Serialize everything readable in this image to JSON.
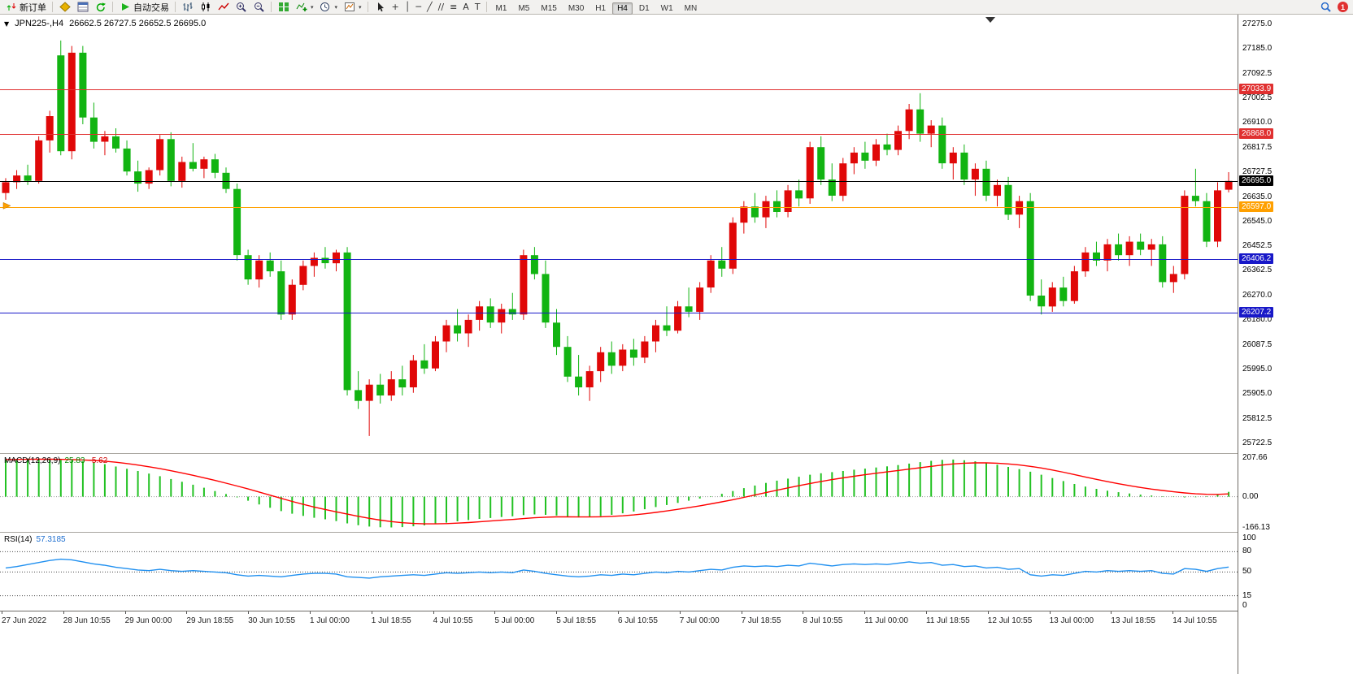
{
  "toolbar": {
    "new_order_label": "新订单",
    "autotrading_label": "自动交易",
    "timeframes": [
      "M1",
      "M5",
      "M15",
      "M30",
      "H1",
      "H4",
      "D1",
      "W1",
      "MN"
    ],
    "active_timeframe": "H4",
    "notification_count": "1"
  },
  "icons": {
    "chart_context_arrow": "▼",
    "dropdown_arrow": "▾",
    "crosshair": "+",
    "vertical_line": "│",
    "horizontal_line": "─",
    "trendline": "╱",
    "channel": "∕∕",
    "fibonacci": "≡",
    "text_tool": "A",
    "label_tool": "T"
  },
  "chart": {
    "title": "JPN225-,H4",
    "ohlc_text": "26662.5 26727.5 26652.5 26695.0",
    "price_axis": [
      "27275.0",
      "27185.0",
      "27092.5",
      "27002.5",
      "26910.0",
      "26817.5",
      "26727.5",
      "26635.0",
      "26545.0",
      "26452.5",
      "26362.5",
      "26270.0",
      "26180.0",
      "26087.5",
      "25995.0",
      "25905.0",
      "25812.5",
      "25722.5"
    ],
    "levels": [
      {
        "price": 27033.9,
        "color": "#e03030",
        "label": "27033.9",
        "type": "resistance"
      },
      {
        "price": 26868.0,
        "color": "#e03030",
        "label": "26868.0",
        "type": "resistance"
      },
      {
        "price": 26695.0,
        "color": "#000000",
        "label": "26695.0",
        "type": "current"
      },
      {
        "price": 26597.0,
        "color": "#ffa000",
        "label": "26597.0",
        "type": "pivot"
      },
      {
        "price": 26406.2,
        "color": "#1818c8",
        "label": "26406.2",
        "type": "support"
      },
      {
        "price": 26207.2,
        "color": "#1818c8",
        "label": "26207.2",
        "type": "support"
      }
    ],
    "time_axis": [
      "27 Jun 2022",
      "28 Jun 10:55",
      "29 Jun 00:00",
      "29 Jun 18:55",
      "30 Jun 10:55",
      "1 Jul 00:00",
      "1 Jul 18:55",
      "4 Jul 10:55",
      "5 Jul 00:00",
      "5 Jul 18:55",
      "6 Jul 10:55",
      "7 Jul 00:00",
      "7 Jul 18:55",
      "8 Jul 10:55",
      "11 Jul 00:00",
      "11 Jul 18:55",
      "12 Jul 10:55",
      "13 Jul 00:00",
      "13 Jul 18:55",
      "14 Jul 10:55"
    ]
  },
  "colors": {
    "up": "#e00808",
    "down": "#12b412",
    "macd_hist": "#22c122",
    "macd_signal": "#ff0000",
    "rsi_line": "#2090f0"
  },
  "chart_data": {
    "type": "candlestick",
    "symbol": "JPN225-",
    "timeframe": "H4",
    "price_range": [
      25722.5,
      27275.0
    ],
    "candles": [
      [
        26650,
        26705,
        26625,
        26690
      ],
      [
        26690,
        26735,
        26665,
        26715
      ],
      [
        26715,
        26755,
        26680,
        26695
      ],
      [
        26695,
        26860,
        26685,
        26845
      ],
      [
        26845,
        26955,
        26800,
        26935
      ],
      [
        27160,
        27215,
        26790,
        26805
      ],
      [
        26805,
        27195,
        26775,
        27170
      ],
      [
        27170,
        27195,
        26905,
        26930
      ],
      [
        26930,
        26985,
        26815,
        26840
      ],
      [
        26840,
        26880,
        26790,
        26860
      ],
      [
        26860,
        26890,
        26800,
        26815
      ],
      [
        26815,
        26845,
        26715,
        26730
      ],
      [
        26730,
        26770,
        26655,
        26685
      ],
      [
        26685,
        26745,
        26665,
        26735
      ],
      [
        26735,
        26865,
        26715,
        26850
      ],
      [
        26850,
        26875,
        26675,
        26695
      ],
      [
        26695,
        26785,
        26670,
        26765
      ],
      [
        26765,
        26835,
        26730,
        26740
      ],
      [
        26740,
        26785,
        26705,
        26775
      ],
      [
        26775,
        26795,
        26705,
        26725
      ],
      [
        26725,
        26745,
        26650,
        26665
      ],
      [
        26665,
        26685,
        26400,
        26420
      ],
      [
        26420,
        26440,
        26310,
        26330
      ],
      [
        26330,
        26420,
        26300,
        26400
      ],
      [
        26400,
        26430,
        26340,
        26360
      ],
      [
        26360,
        26400,
        26180,
        26200
      ],
      [
        26200,
        26330,
        26180,
        26310
      ],
      [
        26310,
        26400,
        26290,
        26380
      ],
      [
        26380,
        26430,
        26340,
        26410
      ],
      [
        26410,
        26450,
        26370,
        26390
      ],
      [
        26390,
        26440,
        26360,
        26430
      ],
      [
        26430,
        26450,
        25900,
        25920
      ],
      [
        25920,
        25990,
        25850,
        25880
      ],
      [
        25880,
        25960,
        25750,
        25940
      ],
      [
        25940,
        25980,
        25870,
        25900
      ],
      [
        25900,
        25990,
        25880,
        25960
      ],
      [
        25960,
        26010,
        25900,
        25930
      ],
      [
        25930,
        26050,
        25910,
        26030
      ],
      [
        26030,
        26090,
        25980,
        26000
      ],
      [
        26000,
        26120,
        25990,
        26100
      ],
      [
        26100,
        26180,
        26060,
        26160
      ],
      [
        26160,
        26220,
        26100,
        26130
      ],
      [
        26130,
        26200,
        26080,
        26180
      ],
      [
        26180,
        26250,
        26140,
        26230
      ],
      [
        26230,
        26260,
        26150,
        26170
      ],
      [
        26170,
        26240,
        26130,
        26220
      ],
      [
        26220,
        26280,
        26180,
        26200
      ],
      [
        26200,
        26440,
        26180,
        26420
      ],
      [
        26420,
        26450,
        26330,
        26350
      ],
      [
        26350,
        26400,
        26150,
        26170
      ],
      [
        26170,
        26220,
        26050,
        26080
      ],
      [
        26080,
        26120,
        25950,
        25970
      ],
      [
        25970,
        26050,
        25900,
        25930
      ],
      [
        25930,
        26010,
        25880,
        25990
      ],
      [
        25990,
        26080,
        25950,
        26060
      ],
      [
        26060,
        26100,
        25980,
        26010
      ],
      [
        26010,
        26090,
        25990,
        26070
      ],
      [
        26070,
        26110,
        26010,
        26040
      ],
      [
        26040,
        26120,
        26020,
        26100
      ],
      [
        26100,
        26180,
        26060,
        26160
      ],
      [
        26160,
        26230,
        26120,
        26140
      ],
      [
        26140,
        26250,
        26130,
        26230
      ],
      [
        26230,
        26300,
        26190,
        26210
      ],
      [
        26210,
        26320,
        26180,
        26300
      ],
      [
        26300,
        26420,
        26280,
        26400
      ],
      [
        26400,
        26450,
        26340,
        26370
      ],
      [
        26370,
        26560,
        26350,
        26540
      ],
      [
        26540,
        26620,
        26500,
        26600
      ],
      [
        26600,
        26650,
        26540,
        26560
      ],
      [
        26560,
        26640,
        26520,
        26620
      ],
      [
        26620,
        26660,
        26560,
        26580
      ],
      [
        26580,
        26680,
        26560,
        26660
      ],
      [
        26660,
        26700,
        26600,
        26630
      ],
      [
        26630,
        26840,
        26610,
        26820
      ],
      [
        26820,
        26860,
        26680,
        26700
      ],
      [
        26700,
        26760,
        26620,
        26640
      ],
      [
        26640,
        26780,
        26620,
        26760
      ],
      [
        26760,
        26820,
        26720,
        26800
      ],
      [
        26800,
        26840,
        26740,
        26770
      ],
      [
        26770,
        26850,
        26750,
        26830
      ],
      [
        26830,
        26870,
        26790,
        26810
      ],
      [
        26810,
        26900,
        26790,
        26880
      ],
      [
        26880,
        26980,
        26850,
        26960
      ],
      [
        26960,
        27020,
        26840,
        26870
      ],
      [
        26870,
        26920,
        26820,
        26900
      ],
      [
        26900,
        26930,
        26740,
        26760
      ],
      [
        26760,
        26820,
        26700,
        26800
      ],
      [
        26800,
        26830,
        26680,
        26700
      ],
      [
        26700,
        26760,
        26640,
        26740
      ],
      [
        26740,
        26770,
        26620,
        26640
      ],
      [
        26640,
        26700,
        26600,
        26680
      ],
      [
        26680,
        26710,
        26550,
        26570
      ],
      [
        26570,
        26640,
        26520,
        26620
      ],
      [
        26620,
        26650,
        26250,
        26270
      ],
      [
        26270,
        26330,
        26200,
        26230
      ],
      [
        26230,
        26320,
        26210,
        26300
      ],
      [
        26300,
        26340,
        26230,
        26250
      ],
      [
        26250,
        26380,
        26240,
        26360
      ],
      [
        26360,
        26450,
        26340,
        26430
      ],
      [
        26430,
        26470,
        26380,
        26400
      ],
      [
        26400,
        26480,
        26360,
        26460
      ],
      [
        26460,
        26500,
        26400,
        26420
      ],
      [
        26420,
        26490,
        26380,
        26470
      ],
      [
        26470,
        26500,
        26420,
        26440
      ],
      [
        26440,
        26480,
        26380,
        26460
      ],
      [
        26460,
        26490,
        26300,
        26320
      ],
      [
        26320,
        26380,
        26280,
        26350
      ],
      [
        26350,
        26660,
        26330,
        26640
      ],
      [
        26640,
        26740,
        26600,
        26620
      ],
      [
        26620,
        26650,
        26450,
        26470
      ],
      [
        26470,
        26690,
        26450,
        26660
      ],
      [
        26662.5,
        26727.5,
        26652.5,
        26695.0
      ]
    ],
    "macd": {
      "label": "MACD(12,26,9)",
      "value_main": "25.83",
      "value_signal": "-5.62",
      "axis": [
        "207.66",
        "0.00",
        "-166.13"
      ],
      "values": [
        200,
        202,
        205,
        204,
        200,
        198,
        195,
        190,
        185,
        175,
        162,
        150,
        138,
        124,
        110,
        95,
        80,
        64,
        48,
        30,
        14,
        -4,
        -22,
        -42,
        -60,
        -78,
        -92,
        -104,
        -114,
        -122,
        -132,
        -144,
        -154,
        -161,
        -165,
        -166,
        -164,
        -160,
        -155,
        -148,
        -140,
        -133,
        -126,
        -120,
        -115,
        -110,
        -106,
        -100,
        -96,
        -98,
        -102,
        -108,
        -112,
        -110,
        -105,
        -98,
        -90,
        -80,
        -68,
        -56,
        -45,
        -34,
        -22,
        -10,
        2,
        15,
        30,
        46,
        60,
        74,
        86,
        97,
        107,
        118,
        126,
        132,
        138,
        145,
        151,
        157,
        163,
        170,
        178,
        186,
        193,
        198,
        200,
        196,
        190,
        182,
        172,
        160,
        148,
        134,
        118,
        100,
        84,
        68,
        54,
        42,
        32,
        24,
        17,
        11,
        6,
        2,
        -2,
        -4,
        -3,
        2,
        10,
        25.83
      ]
    },
    "rsi": {
      "label": "RSI(14)",
      "value": "57.3185",
      "axis": [
        "100",
        "80",
        "50",
        "15",
        "0"
      ],
      "levels": [
        80,
        50,
        15
      ],
      "values": [
        56,
        58,
        61,
        64,
        67,
        69,
        68,
        65,
        62,
        60,
        57,
        55,
        53,
        52,
        54,
        52,
        51,
        52,
        51,
        50,
        49,
        46,
        44,
        45,
        44,
        43,
        45,
        47,
        48,
        48,
        47,
        43,
        42,
        41,
        43,
        44,
        45,
        46,
        45,
        47,
        49,
        48,
        49,
        50,
        49,
        50,
        49,
        53,
        51,
        48,
        46,
        44,
        43,
        44,
        46,
        45,
        47,
        46,
        48,
        50,
        49,
        51,
        50,
        52,
        54,
        53,
        57,
        59,
        58,
        59,
        58,
        60,
        59,
        63,
        61,
        59,
        61,
        62,
        61,
        62,
        61,
        63,
        65,
        63,
        64,
        60,
        61,
        58,
        59,
        56,
        57,
        54,
        55,
        46,
        44,
        46,
        45,
        48,
        51,
        50,
        52,
        51,
        52,
        51,
        52,
        48,
        47,
        55,
        54,
        51,
        55,
        57.3
      ]
    }
  }
}
